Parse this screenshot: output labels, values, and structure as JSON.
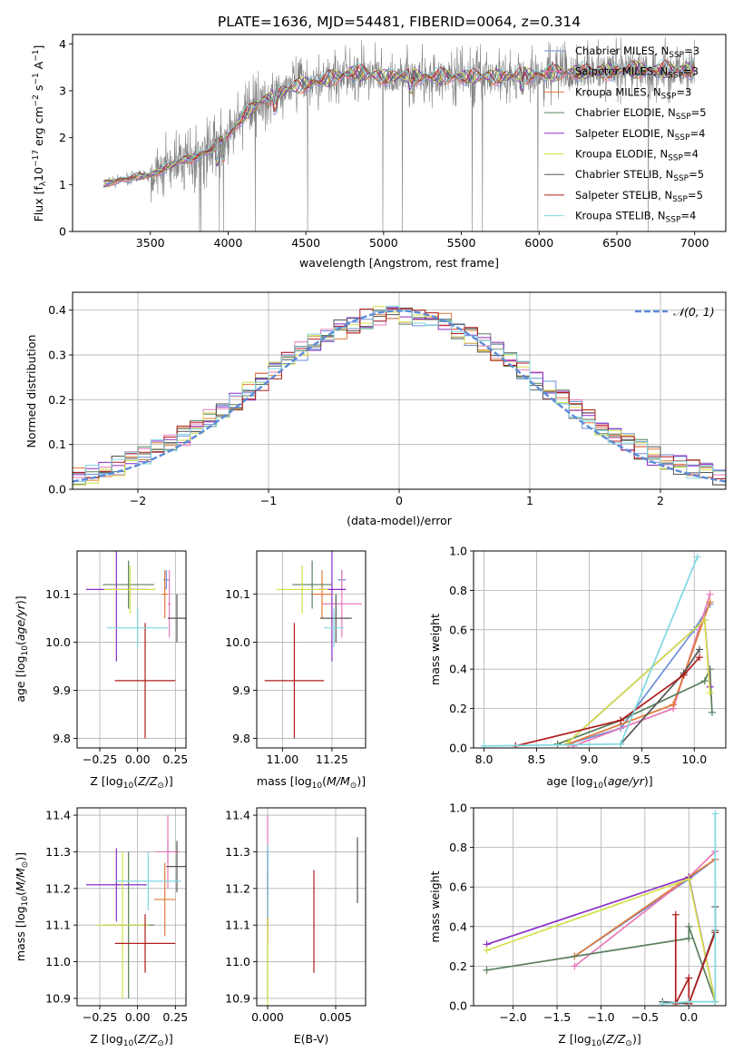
{
  "figure_title": "PLATE=1636, MJD=54481, FIBERID=0064, z=0.314",
  "colors": {
    "chabrier_miles": "#6b8fd6",
    "salpeter_miles": "#e879b8",
    "kroupa_miles": "#e07b39",
    "chabrier_elodie": "#5a7f5e",
    "salpeter_elodie": "#8a2ec4",
    "kroupa_elodie": "#d4e04a",
    "chabrier_stelib": "#555555",
    "salpeter_stelib": "#b01c1c",
    "kroupa_stelib": "#7fd8e0",
    "data_gray": "#808080",
    "normal_curve": "#5b8bd9"
  },
  "chart_data": [
    {
      "id": "spectrum",
      "type": "line",
      "title": "PLATE=1636, MJD=54481, FIBERID=0064, z=0.314",
      "xlabel": "wavelength [Angstrom, rest frame]",
      "ylabel": "Flux [f_λ 10^-17 erg cm^-2 s^-1 A^-1]",
      "xlim": [
        3000,
        7200
      ],
      "ylim": [
        0,
        4.2
      ],
      "xticks": [
        "3500",
        "4000",
        "4500",
        "5000",
        "5500",
        "6000",
        "6500",
        "7000"
      ],
      "yticks": [
        "0",
        "1",
        "2",
        "3",
        "4"
      ],
      "legend": [
        "Chabrier MILES, N_SSP=3",
        "Salpeter MILES, N_SSP=3",
        "Kroupa MILES, N_SSP=3",
        "Chabrier ELODIE, N_SSP=5",
        "Salpeter ELODIE, N_SSP=4",
        "Kroupa ELODIE, N_SSP=4",
        "Chabrier STELIB, N_SSP=5",
        "Salpeter STELIB, N_SSP=5",
        "Kroupa STELIB, N_SSP=4"
      ],
      "legend_placement": "upper right",
      "continuum": {
        "x": [
          3200,
          3300,
          3400,
          3500,
          3600,
          3700,
          3800,
          3900,
          4000,
          4100,
          4200,
          4300,
          4400,
          4500,
          4600,
          4700,
          4800,
          4900,
          5000,
          5200,
          5400,
          5600,
          5800,
          6000,
          6200,
          6400,
          6600,
          6800,
          7000
        ],
        "y": [
          1.0,
          1.1,
          1.15,
          1.2,
          1.35,
          1.5,
          1.6,
          1.75,
          2.05,
          2.45,
          2.75,
          2.9,
          3.05,
          3.15,
          3.2,
          3.3,
          3.4,
          3.35,
          3.3,
          3.3,
          3.3,
          3.3,
          3.3,
          3.35,
          3.4,
          3.4,
          3.45,
          3.45,
          3.45
        ]
      }
    },
    {
      "id": "residuals",
      "type": "line",
      "xlabel": "(data-model)/error",
      "ylabel": "Normed distribution",
      "xlim": [
        -2.5,
        2.5
      ],
      "ylim": [
        0,
        0.44
      ],
      "xticks": [
        "−2",
        "−1",
        "0",
        "1",
        "2"
      ],
      "yticks": [
        "0.0",
        "0.1",
        "0.2",
        "0.3",
        "0.4"
      ],
      "legend": [
        "𝒩(0, 1)"
      ],
      "legend_placement": "upper right",
      "bin_width": 0.1,
      "series_note": "nine step histograms, one per model, plus the N(0,1) curve"
    },
    {
      "id": "age_vs_Z",
      "type": "scatter",
      "xlabel": "Z [log10(Z/Z⊙)]",
      "ylabel": "age  [log10(age/yr)]",
      "xlim": [
        -0.4,
        0.32
      ],
      "ylim": [
        9.78,
        10.19
      ],
      "xticks": [
        "−0.25",
        "0.00",
        "0.25"
      ],
      "yticks": [
        "9.8",
        "9.9",
        "10.0",
        "10.1"
      ],
      "points": [
        {
          "model": "chabrier_miles",
          "x": 0.19,
          "y": 10.13,
          "xerr": 0.02,
          "yerr": 0.02
        },
        {
          "model": "salpeter_miles",
          "x": 0.21,
          "y": 10.08,
          "xerr": 0.01,
          "yerr": 0.07
        },
        {
          "model": "kroupa_miles",
          "x": 0.18,
          "y": 10.1,
          "xerr": 0.02,
          "yerr": 0.05
        },
        {
          "model": "chabrier_elodie",
          "x": -0.06,
          "y": 10.12,
          "xerr": 0.17,
          "yerr": 0.05
        },
        {
          "model": "salpeter_elodie",
          "x": -0.14,
          "y": 10.11,
          "xerr": 0.2,
          "yerr": 0.15
        },
        {
          "model": "kroupa_elodie",
          "x": -0.05,
          "y": 10.11,
          "xerr": 0.17,
          "yerr": 0.05
        },
        {
          "model": "chabrier_stelib",
          "x": 0.26,
          "y": 10.05,
          "xerr": 0.06,
          "yerr": 0.05
        },
        {
          "model": "salpeter_stelib",
          "x": 0.05,
          "y": 9.92,
          "xerr": 0.2,
          "yerr": 0.12
        },
        {
          "model": "kroupa_stelib",
          "x": 0.0,
          "y": 10.03,
          "xerr": 0.2,
          "yerr": 0.04
        }
      ]
    },
    {
      "id": "age_vs_mass",
      "type": "scatter",
      "xlabel": "mass [log10(M/M⊙)]",
      "ylabel": "",
      "xlim": [
        10.87,
        11.42
      ],
      "ylim": [
        9.78,
        10.19
      ],
      "xticks": [
        "11.00",
        "11.25"
      ],
      "yticks": [
        "9.8",
        "9.9",
        "10.0",
        "10.1"
      ],
      "points": [
        {
          "model": "chabrier_miles",
          "x": 11.3,
          "y": 10.13,
          "xerr": 0.02,
          "yerr": 0.02
        },
        {
          "model": "salpeter_miles",
          "x": 11.3,
          "y": 10.08,
          "xerr": 0.1,
          "yerr": 0.07
        },
        {
          "model": "kroupa_miles",
          "x": 11.2,
          "y": 10.1,
          "xerr": 0.05,
          "yerr": 0.05
        },
        {
          "model": "chabrier_elodie",
          "x": 11.15,
          "y": 10.12,
          "xerr": 0.1,
          "yerr": 0.05
        },
        {
          "model": "salpeter_elodie",
          "x": 11.25,
          "y": 10.11,
          "xerr": 0.07,
          "yerr": 0.15
        },
        {
          "model": "kroupa_elodie",
          "x": 11.1,
          "y": 10.11,
          "xerr": 0.13,
          "yerr": 0.05
        },
        {
          "model": "chabrier_stelib",
          "x": 11.27,
          "y": 10.05,
          "xerr": 0.08,
          "yerr": 0.05
        },
        {
          "model": "salpeter_stelib",
          "x": 11.06,
          "y": 9.92,
          "xerr": 0.15,
          "yerr": 0.12
        },
        {
          "model": "kroupa_stelib",
          "x": 11.26,
          "y": 10.03,
          "xerr": 0.05,
          "yerr": 0.04
        }
      ]
    },
    {
      "id": "weight_vs_age",
      "type": "line",
      "xlabel": "age  [log10(age/yr)]",
      "ylabel": "mass weight",
      "xlim": [
        7.9,
        10.3
      ],
      "ylim": [
        0,
        1.0
      ],
      "xticks": [
        "8.0",
        "8.5",
        "9.0",
        "9.5",
        "10.0"
      ],
      "yticks": [
        "0.0",
        "0.2",
        "0.4",
        "0.6",
        "0.8",
        "1.0"
      ],
      "series": [
        {
          "model": "chabrier_miles",
          "x": [
            8.8,
            9.3,
            10.0,
            10.15
          ],
          "y": [
            0.02,
            0.1,
            0.6,
            0.73
          ]
        },
        {
          "model": "salpeter_miles",
          "x": [
            8.85,
            9.8,
            10.15
          ],
          "y": [
            0.01,
            0.2,
            0.78
          ]
        },
        {
          "model": "kroupa_miles",
          "x": [
            8.8,
            9.8,
            10.15
          ],
          "y": [
            0.02,
            0.22,
            0.74
          ]
        },
        {
          "model": "chabrier_elodie",
          "x": [
            8.7,
            9.3,
            10.1,
            10.15,
            10.17
          ],
          "y": [
            0.02,
            0.14,
            0.34,
            0.4,
            0.18
          ]
        },
        {
          "model": "salpeter_elodie",
          "x": [
            8.8,
            10.1,
            10.15
          ],
          "y": [
            0.03,
            0.65,
            0.31
          ]
        },
        {
          "model": "kroupa_elodie",
          "x": [
            8.8,
            10.1,
            10.15
          ],
          "y": [
            0.03,
            0.65,
            0.28
          ]
        },
        {
          "model": "chabrier_stelib",
          "x": [
            9.3,
            9.9,
            10.05
          ],
          "y": [
            0.02,
            0.38,
            0.5
          ]
        },
        {
          "model": "salpeter_stelib",
          "x": [
            8.3,
            9.3,
            9.9,
            10.05
          ],
          "y": [
            0.01,
            0.14,
            0.37,
            0.46
          ]
        },
        {
          "model": "kroupa_stelib",
          "x": [
            8.0,
            9.3,
            10.03
          ],
          "y": [
            0.01,
            0.02,
            0.97
          ]
        }
      ]
    },
    {
      "id": "mass_vs_Z",
      "type": "scatter",
      "xlabel": "Z [log10(Z/Z⊙)]",
      "ylabel": "mass [log10(M/M⊙)]",
      "xlim": [
        -0.4,
        0.32
      ],
      "ylim": [
        10.88,
        11.42
      ],
      "xticks": [
        "−0.25",
        "0.00",
        "0.25"
      ],
      "yticks": [
        "10.9",
        "11.0",
        "11.1",
        "11.2",
        "11.3",
        "11.4"
      ],
      "points": [
        {
          "model": "chabrier_miles",
          "x": 0.2,
          "y": 11.3,
          "xerr": 0.02,
          "yerr": 0.03
        },
        {
          "model": "salpeter_miles",
          "x": 0.2,
          "y": 11.3,
          "xerr": 0.08,
          "yerr": 0.1
        },
        {
          "model": "kroupa_miles",
          "x": 0.18,
          "y": 11.17,
          "xerr": 0.07,
          "yerr": 0.1
        },
        {
          "model": "chabrier_elodie",
          "x": -0.06,
          "y": 11.1,
          "xerr": 0.17,
          "yerr": 0.2
        },
        {
          "model": "salpeter_elodie",
          "x": -0.14,
          "y": 11.21,
          "xerr": 0.2,
          "yerr": 0.1
        },
        {
          "model": "kroupa_elodie",
          "x": -0.1,
          "y": 11.1,
          "xerr": 0.17,
          "yerr": 0.2
        },
        {
          "model": "chabrier_stelib",
          "x": 0.26,
          "y": 11.26,
          "xerr": 0.07,
          "yerr": 0.07
        },
        {
          "model": "salpeter_stelib",
          "x": 0.05,
          "y": 11.05,
          "xerr": 0.2,
          "yerr": 0.08
        },
        {
          "model": "kroupa_stelib",
          "x": 0.07,
          "y": 11.22,
          "xerr": 0.22,
          "yerr": 0.08
        }
      ]
    },
    {
      "id": "mass_vs_ebv",
      "type": "scatter",
      "xlabel": "E(B-V)",
      "ylabel": "",
      "xlim": [
        -0.0008,
        0.0072
      ],
      "ylim": [
        10.88,
        11.42
      ],
      "xticks": [
        "0.000",
        "0.005"
      ],
      "yticks": [
        "10.9",
        "11.0",
        "11.1",
        "11.2",
        "11.3",
        "11.4"
      ],
      "points": [
        {
          "model": "chabrier_miles",
          "x": 0.0,
          "y": 11.25,
          "xerr": 0,
          "yerr": 0.07
        },
        {
          "model": "salpeter_miles",
          "x": 0.0,
          "y": 11.3,
          "xerr": 0,
          "yerr": 0.1
        },
        {
          "model": "kroupa_miles",
          "x": 0.0,
          "y": 11.15,
          "xerr": 0,
          "yerr": 0.1
        },
        {
          "model": "chabrier_elodie",
          "x": 0.0,
          "y": 11.1,
          "xerr": 0,
          "yerr": 0.2
        },
        {
          "model": "salpeter_elodie",
          "x": 0.0,
          "y": 11.2,
          "xerr": 0,
          "yerr": 0.1
        },
        {
          "model": "kroupa_elodie",
          "x": 0.0,
          "y": 11.0,
          "xerr": 0,
          "yerr": 0.12
        },
        {
          "model": "chabrier_stelib",
          "x": 0.0066,
          "y": 11.25,
          "xerr": 0,
          "yerr": 0.09
        },
        {
          "model": "salpeter_stelib",
          "x": 0.0034,
          "y": 11.11,
          "xerr": 0,
          "yerr": 0.14
        },
        {
          "model": "kroupa_stelib",
          "x": 0.0,
          "y": 11.22,
          "xerr": 0,
          "yerr": 0.1
        }
      ]
    },
    {
      "id": "weight_vs_Z",
      "type": "line",
      "xlabel": "Z [log10(Z/Z⊙)]",
      "ylabel": "mass weight",
      "xlim": [
        -2.45,
        0.42
      ],
      "ylim": [
        0,
        1.0
      ],
      "xticks": [
        "−2.0",
        "−1.5",
        "−1.0",
        "−0.5",
        "0.0"
      ],
      "yticks": [
        "0.0",
        "0.2",
        "0.4",
        "0.6",
        "0.8",
        "1.0"
      ],
      "series": [
        {
          "model": "chabrier_miles",
          "x": [
            -1.3,
            0.0,
            0.3
          ],
          "y": [
            0.25,
            0.64,
            0.74
          ]
        },
        {
          "model": "salpeter_miles",
          "x": [
            -1.3,
            0.0,
            0.3
          ],
          "y": [
            0.2,
            0.65,
            0.78
          ]
        },
        {
          "model": "kroupa_miles",
          "x": [
            -1.3,
            0.0,
            0.3
          ],
          "y": [
            0.25,
            0.65,
            0.74
          ]
        },
        {
          "model": "chabrier_elodie",
          "x": [
            -2.3,
            0.0,
            0.0,
            0.3
          ],
          "y": [
            0.18,
            0.34,
            0.4,
            0.02
          ]
        },
        {
          "model": "salpeter_elodie",
          "x": [
            -2.3,
            0.0,
            0.3
          ],
          "y": [
            0.31,
            0.65,
            0.02
          ]
        },
        {
          "model": "kroupa_elodie",
          "x": [
            -2.3,
            0.0,
            0.3
          ],
          "y": [
            0.28,
            0.64,
            0.02
          ]
        },
        {
          "model": "chabrier_stelib",
          "x": [
            -0.3,
            0.0,
            0.3,
            0.3
          ],
          "y": [
            0.02,
            0.01,
            0.38,
            0.5
          ]
        },
        {
          "model": "salpeter_stelib",
          "x": [
            -0.15,
            -0.15,
            0.0,
            0.0,
            0.3
          ],
          "y": [
            0.46,
            0.01,
            0.14,
            0.01,
            0.37
          ]
        },
        {
          "model": "kroupa_stelib",
          "x": [
            -0.3,
            0.0,
            0.3,
            0.3
          ],
          "y": [
            0.01,
            0.02,
            0.02,
            0.97
          ]
        }
      ]
    }
  ]
}
